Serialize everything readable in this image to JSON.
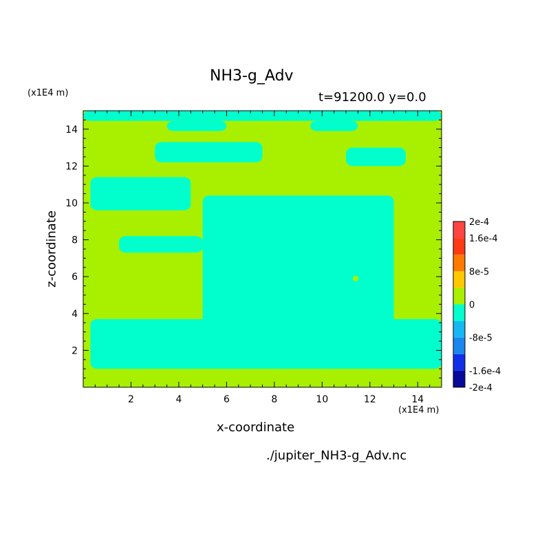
{
  "chart_data": {
    "type": "heatmap",
    "title": "NH3-g_Adv",
    "subtitle": "t=91200.0 y=0.0",
    "xlabel": "x-coordinate",
    "ylabel": "z-coordinate",
    "x_unit": "(x1E4 m)",
    "y_unit": "(x1E4 m)",
    "xlim": [
      0,
      15
    ],
    "ylim": [
      0,
      15
    ],
    "xticks": [
      2,
      4,
      6,
      8,
      10,
      12,
      14
    ],
    "yticks": [
      2,
      4,
      6,
      8,
      10,
      12,
      14
    ],
    "colorbar": {
      "labels": [
        "2e-4",
        "1.6e-4",
        "8e-5",
        "0",
        "-8e-5",
        "-1.6e-4",
        "-2e-4"
      ],
      "label_values": [
        0.0002,
        0.00016,
        8e-05,
        0,
        -8e-05,
        -0.00016,
        -0.0002
      ],
      "levels": [
        -0.0002,
        -0.00016,
        -0.00012,
        -8e-05,
        -4e-05,
        0,
        4e-05,
        8e-05,
        0.00012,
        0.00016,
        0.0002
      ],
      "colors": [
        "#0a0a9a",
        "#1030e8",
        "#1a86ee",
        "#16b8f4",
        "#00ffcc",
        "#a8f000",
        "#ffc800",
        "#ff7a00",
        "#ff3a14",
        "#ff4444"
      ]
    },
    "field_description": "Field values lie between -8e-5 and 8e-5; regions of small positive values (0 to 4e-5) and small negative values (-4e-5 to 0).",
    "negative_regions": [
      {
        "z": [
          14.45,
          15.0
        ],
        "x": [
          0,
          15
        ]
      },
      {
        "z": [
          13.9,
          14.45
        ],
        "x": [
          3.5,
          6.0
        ]
      },
      {
        "z": [
          13.9,
          14.45
        ],
        "x": [
          9.5,
          11.5
        ]
      },
      {
        "z": [
          12.2,
          13.3
        ],
        "x": [
          3.0,
          7.5
        ]
      },
      {
        "z": [
          12.0,
          13.0
        ],
        "x": [
          11.0,
          13.5
        ]
      },
      {
        "z": [
          9.6,
          11.4
        ],
        "x": [
          0.3,
          4.5
        ]
      },
      {
        "z": [
          3.4,
          10.4
        ],
        "x": [
          5.0,
          13.0
        ]
      },
      {
        "z": [
          7.3,
          8.2
        ],
        "x": [
          1.5,
          5.0
        ]
      },
      {
        "z": [
          1.0,
          3.7
        ],
        "x": [
          0.3,
          15.0
        ]
      }
    ],
    "sample_point": {
      "x": 11.4,
      "z": 5.9
    }
  },
  "labels": {
    "title": "NH3-g_Adv",
    "subtitle": "t=91200.0 y=0.0",
    "y_unit": "(x1E4 m)",
    "x_unit": "(x1E4 m)",
    "xlabel": "x-coordinate",
    "ylabel": "z-coordinate",
    "source": "./jupiter_NH3-g_Adv.nc"
  }
}
